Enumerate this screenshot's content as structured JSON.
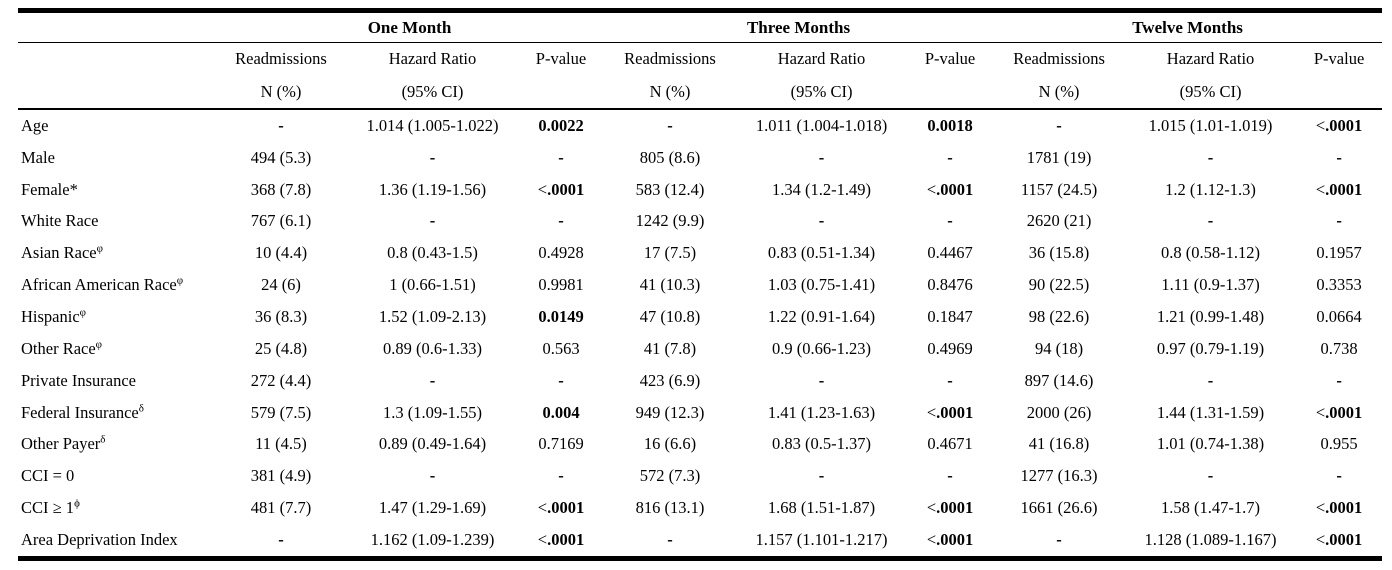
{
  "table": {
    "groups": [
      {
        "label": "One Month"
      },
      {
        "label": "Three Months"
      },
      {
        "label": "Twelve Months"
      }
    ],
    "sub_headers": {
      "readmissions_line1": "Readmissions",
      "readmissions_line2": "N (%)",
      "hazard_line1": "Hazard Ratio",
      "hazard_line2": "(95% CI)",
      "pvalue": "P-value"
    },
    "rows": [
      {
        "label": "Age",
        "sup": "",
        "cells": [
          "-",
          "1.014 (1.005-1.022)",
          "0.0022",
          "-",
          "1.011 (1.004-1.018)",
          "0.0018",
          "-",
          "1.015 (1.01-1.019)",
          "<.0001"
        ],
        "bold_p": [
          true,
          true,
          true
        ]
      },
      {
        "label": "Male",
        "sup": "",
        "cells": [
          "494 (5.3)",
          "-",
          "-",
          "805 (8.6)",
          "-",
          "-",
          "1781 (19)",
          "-",
          "-"
        ],
        "bold_p": [
          false,
          false,
          false
        ]
      },
      {
        "label": "Female*",
        "sup": "",
        "cells": [
          "368 (7.8)",
          "1.36 (1.19-1.56)",
          "<.0001",
          "583 (12.4)",
          "1.34 (1.2-1.49)",
          "<.0001",
          "1157 (24.5)",
          "1.2 (1.12-1.3)",
          "<.0001"
        ],
        "bold_p": [
          true,
          true,
          true
        ]
      },
      {
        "label": "White Race",
        "sup": "",
        "cells": [
          "767 (6.1)",
          "-",
          "-",
          "1242 (9.9)",
          "-",
          "-",
          "2620 (21)",
          "-",
          "-"
        ],
        "bold_p": [
          false,
          false,
          false
        ]
      },
      {
        "label": "Asian Race",
        "sup": "φ",
        "cells": [
          "10 (4.4)",
          "0.8 (0.43-1.5)",
          "0.4928",
          "17 (7.5)",
          "0.83 (0.51-1.34)",
          "0.4467",
          "36 (15.8)",
          "0.8 (0.58-1.12)",
          "0.1957"
        ],
        "bold_p": [
          false,
          false,
          false
        ]
      },
      {
        "label": "African American Race",
        "sup": "φ",
        "cells": [
          "24 (6)",
          "1 (0.66-1.51)",
          "0.9981",
          "41 (10.3)",
          "1.03 (0.75-1.41)",
          "0.8476",
          "90 (22.5)",
          "1.11 (0.9-1.37)",
          "0.3353"
        ],
        "bold_p": [
          false,
          false,
          false
        ]
      },
      {
        "label": "Hispanic",
        "sup": "φ",
        "cells": [
          "36 (8.3)",
          "1.52 (1.09-2.13)",
          "0.0149",
          "47 (10.8)",
          "1.22 (0.91-1.64)",
          "0.1847",
          "98 (22.6)",
          "1.21 (0.99-1.48)",
          "0.0664"
        ],
        "bold_p": [
          true,
          false,
          false
        ]
      },
      {
        "label": "Other Race",
        "sup": "φ",
        "cells": [
          "25 (4.8)",
          "0.89 (0.6-1.33)",
          "0.563",
          "41 (7.8)",
          "0.9 (0.66-1.23)",
          "0.4969",
          "94 (18)",
          "0.97 (0.79-1.19)",
          "0.738"
        ],
        "bold_p": [
          false,
          false,
          false
        ]
      },
      {
        "label": "Private Insurance",
        "sup": "",
        "cells": [
          "272 (4.4)",
          "-",
          "-",
          "423 (6.9)",
          "-",
          "-",
          "897 (14.6)",
          "-",
          "-"
        ],
        "bold_p": [
          false,
          false,
          false
        ]
      },
      {
        "label": "Federal Insurance",
        "sup": "δ",
        "cells": [
          "579 (7.5)",
          "1.3 (1.09-1.55)",
          "0.004",
          "949 (12.3)",
          "1.41 (1.23-1.63)",
          "<.0001",
          "2000 (26)",
          "1.44 (1.31-1.59)",
          "<.0001"
        ],
        "bold_p": [
          true,
          true,
          true
        ]
      },
      {
        "label": "Other Payer",
        "sup": "δ",
        "cells": [
          "11 (4.5)",
          "0.89 (0.49-1.64)",
          "0.7169",
          "16 (6.6)",
          "0.83 (0.5-1.37)",
          "0.4671",
          "41 (16.8)",
          "1.01 (0.74-1.38)",
          "0.955"
        ],
        "bold_p": [
          false,
          false,
          false
        ]
      },
      {
        "label": "CCI = 0",
        "sup": "",
        "cells": [
          "381 (4.9)",
          "-",
          "-",
          "572 (7.3)",
          "-",
          "-",
          "1277 (16.3)",
          "-",
          "-"
        ],
        "bold_p": [
          false,
          false,
          false
        ]
      },
      {
        "label": "CCI ≥ 1",
        "sup": "ϕ",
        "cells": [
          "481 (7.7)",
          "1.47 (1.29-1.69)",
          "<.0001",
          "816 (13.1)",
          "1.68 (1.51-1.87)",
          "<.0001",
          "1661 (26.6)",
          "1.58 (1.47-1.7)",
          "<.0001"
        ],
        "bold_p": [
          true,
          true,
          true
        ]
      },
      {
        "label": "Area Deprivation Index",
        "sup": "",
        "cells": [
          "-",
          "1.162 (1.09-1.239)",
          "<.0001",
          "-",
          "1.157 (1.101-1.217)",
          "<.0001",
          "-",
          "1.128 (1.089-1.167)",
          "<.0001"
        ],
        "bold_p": [
          true,
          true,
          true
        ]
      }
    ]
  }
}
